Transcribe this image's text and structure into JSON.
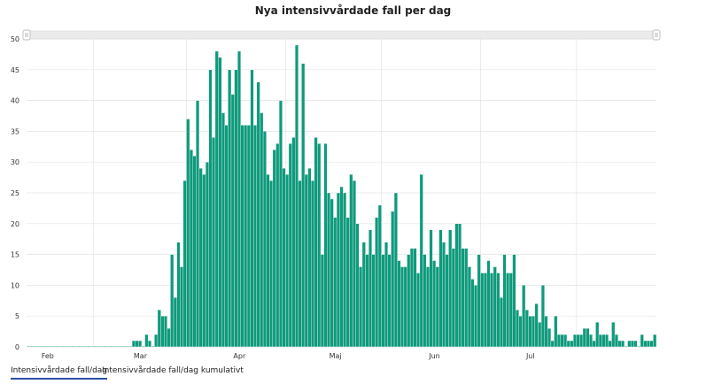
{
  "title": "Nya intensivvårdade fall per dag",
  "tabs": [
    {
      "label": "Intensivvårdade fall/dag",
      "active": true
    },
    {
      "label": "Intensivvårdade fall/dag kumulativt",
      "active": false
    }
  ],
  "colors": {
    "bar": "#0f9a7c",
    "bar_edge": "#ffffff",
    "grid": "#e4e4e4",
    "slider": "#ebebeb",
    "tab_underline": "#2b4fa8"
  },
  "chart_data": {
    "type": "bar",
    "title": "Nya intensivvårdade fall per dag",
    "xlabel": "",
    "ylabel": "",
    "ylim": [
      0,
      50
    ],
    "yticks": [
      0,
      5,
      10,
      15,
      20,
      25,
      30,
      35,
      40,
      45,
      50
    ],
    "x_tick_labels": [
      "Feb",
      "Mar",
      "Apr",
      "Maj",
      "Jun",
      "Jul"
    ],
    "x_start": "2020-01-11",
    "x_end": "2020-07-18",
    "grid": true,
    "series": [
      {
        "values": [
          0,
          0,
          0,
          0,
          0,
          0,
          0,
          0,
          0,
          0,
          0,
          0,
          0,
          0,
          0,
          0,
          0,
          0,
          0,
          0,
          0,
          0,
          0,
          0,
          0,
          0,
          0,
          0,
          0,
          0,
          0,
          0,
          0,
          1,
          1,
          1,
          0,
          2,
          1,
          0,
          2,
          6,
          5,
          5,
          3,
          15,
          8,
          17,
          13,
          27,
          37,
          32,
          31,
          40,
          29,
          28,
          30,
          45,
          34,
          48,
          47,
          38,
          36,
          45,
          41,
          45,
          48,
          36,
          36,
          36,
          45,
          36,
          43,
          38,
          35,
          28,
          27,
          32,
          33,
          40,
          29,
          28,
          33,
          34,
          49,
          27,
          46,
          28,
          29,
          27,
          34,
          33,
          15,
          33,
          25,
          24,
          21,
          25,
          26,
          25,
          21,
          28,
          27,
          20,
          13,
          17,
          15,
          19,
          15,
          21,
          23,
          15,
          17,
          15,
          22,
          25,
          14,
          13,
          13,
          15,
          16,
          16,
          12,
          28,
          15,
          13,
          19,
          14,
          13,
          19,
          17,
          15,
          19,
          16,
          20,
          20,
          16,
          16,
          13,
          11,
          10,
          15,
          12,
          12,
          14,
          12,
          13,
          12,
          8,
          15,
          12,
          12,
          15,
          6,
          5,
          10,
          6,
          5,
          5,
          7,
          4,
          10,
          5,
          3,
          1,
          5,
          2,
          2,
          2,
          1,
          1,
          2,
          2,
          2,
          3,
          3,
          2,
          1,
          4,
          2,
          2,
          2,
          1,
          4,
          2,
          1,
          1,
          0,
          1,
          1,
          1,
          0,
          2,
          1,
          1,
          1,
          2
        ]
      }
    ]
  }
}
